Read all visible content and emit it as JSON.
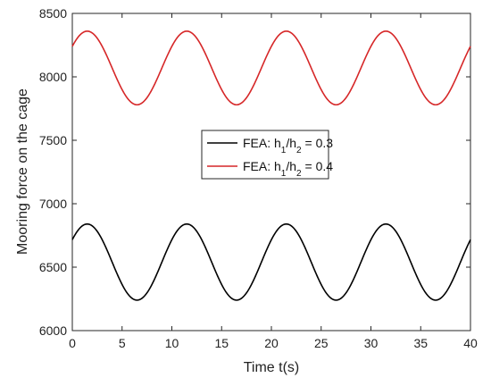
{
  "chart_data": {
    "type": "line",
    "xlabel": "Time t(s)",
    "ylabel": "Mooring force on the cage",
    "xlim": [
      0,
      40
    ],
    "ylim": [
      6000,
      8500
    ],
    "xticks": [
      "0",
      "5",
      "10",
      "15",
      "20",
      "25",
      "30",
      "35",
      "40"
    ],
    "yticks": [
      "6000",
      "6500",
      "7000",
      "7500",
      "8000",
      "8500"
    ],
    "grid": false,
    "legend_position": "center",
    "series": [
      {
        "name_parts": [
          "FEA: h",
          "1",
          "/h",
          "2",
          " = 0.3"
        ],
        "color": "#000000",
        "period": 10,
        "mean": 6540,
        "amplitude": 300,
        "x": [
          0,
          1.5,
          6.5,
          11.5,
          16.5,
          21.5,
          26.5,
          31.5,
          36.5,
          40
        ],
        "y": [
          6690,
          6840,
          6240,
          6840,
          6240,
          6840,
          6240,
          6840,
          6240,
          6690
        ]
      },
      {
        "name_parts": [
          "FEA: h",
          "1",
          "/h",
          "2",
          " = 0.4"
        ],
        "color": "#d62728",
        "period": 10,
        "mean": 8070,
        "amplitude": 290,
        "x": [
          0,
          1.5,
          6.5,
          11.5,
          16.5,
          21.5,
          26.5,
          31.5,
          36.5,
          40
        ],
        "y": [
          8210,
          8360,
          7780,
          8360,
          7780,
          8360,
          7780,
          8360,
          7780,
          8210
        ]
      }
    ]
  }
}
